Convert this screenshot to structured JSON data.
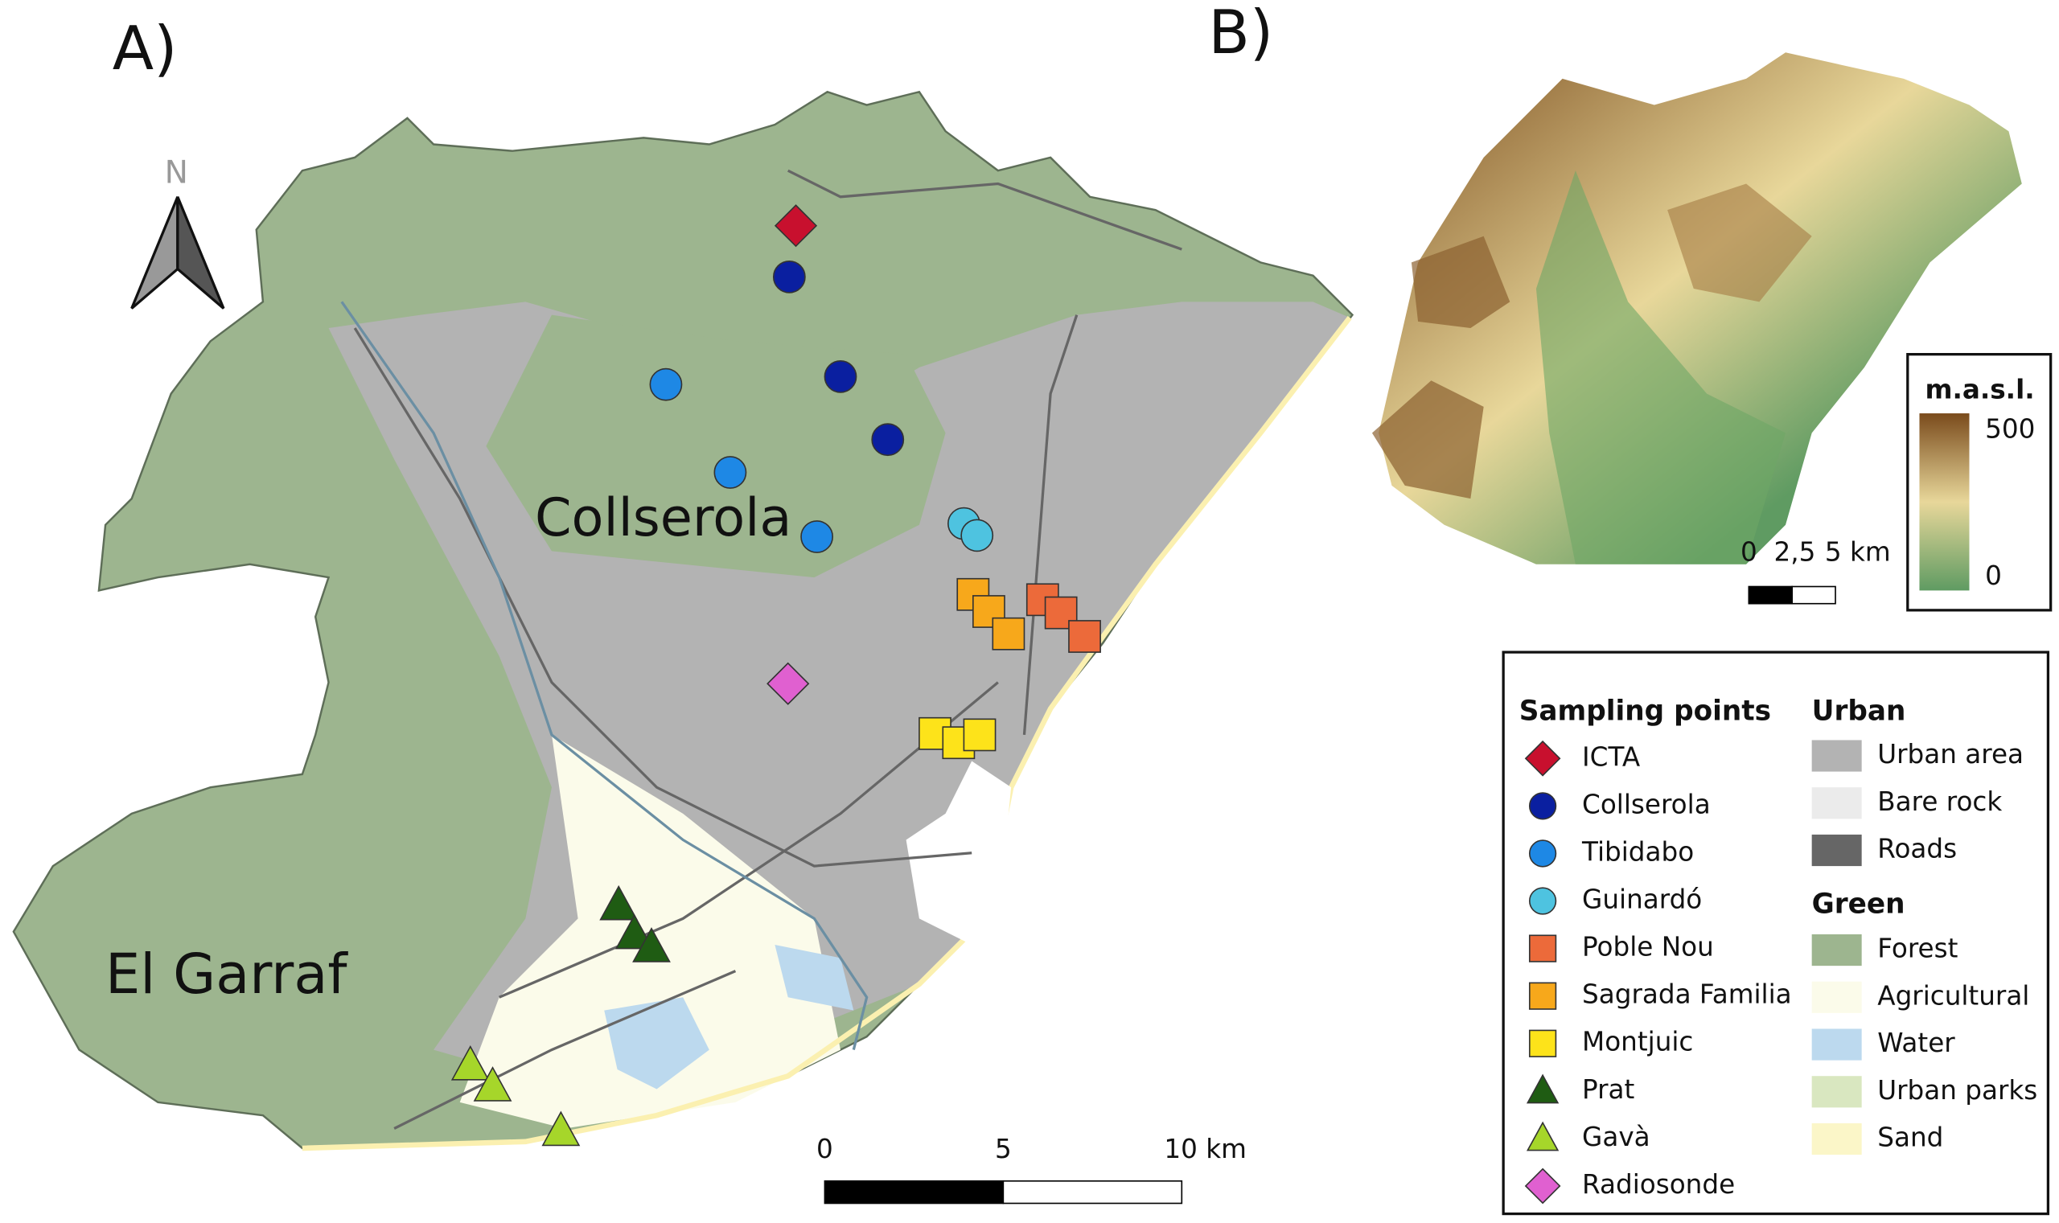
{
  "panels": {
    "a": "A)",
    "b": "B)"
  },
  "north": "N",
  "places": {
    "collserola": "Collserola",
    "garraf": "El Garraf"
  },
  "scale_bar": {
    "labels": [
      "0",
      "5",
      "10 km"
    ]
  },
  "inset": {
    "scale_labels": [
      "0",
      "2,5",
      "5 km"
    ],
    "elevation": {
      "title": "m.a.s.l.",
      "max_label": "500",
      "min_label": "0",
      "high_color": "#7a4b1c",
      "mid_color": "#e8d79a",
      "low_color": "#5f9b62"
    }
  },
  "legend": {
    "sampling_points": {
      "title": "Sampling points",
      "items": [
        {
          "name": "ICTA",
          "color": "#c8102e",
          "shape": "diamond"
        },
        {
          "name": "Collserola",
          "color": "#0a1fa0",
          "shape": "circle"
        },
        {
          "name": "Tibidabo",
          "color": "#1e88e5",
          "shape": "circle"
        },
        {
          "name": "Guinardó",
          "color": "#4ec3e0",
          "shape": "circle"
        },
        {
          "name": "Poble Nou",
          "color": "#ec6a3a",
          "shape": "square"
        },
        {
          "name": "Sagrada Familia",
          "color": "#f7a81b",
          "shape": "square"
        },
        {
          "name": "Montjuic",
          "color": "#fde31a",
          "shape": "square"
        },
        {
          "name": "Prat",
          "color": "#1f5c13",
          "shape": "triangle"
        },
        {
          "name": "Gavà",
          "color": "#a6d62a",
          "shape": "triangle"
        },
        {
          "name": "Radiosonde",
          "color": "#e060d0",
          "shape": "diamond"
        }
      ]
    },
    "urban": {
      "title": "Urban",
      "items": [
        {
          "name": "Urban area",
          "color": "#b3b3b3"
        },
        {
          "name": "Bare rock",
          "color": "#ebebeb"
        },
        {
          "name": "Roads",
          "color": "#666666"
        }
      ]
    },
    "green": {
      "title": "Green",
      "items": [
        {
          "name": "Forest",
          "color": "#9db58f"
        },
        {
          "name": "Agricultural",
          "color": "#fbfbea"
        },
        {
          "name": "Water",
          "color": "#bcd9ee"
        },
        {
          "name": "Urban parks",
          "color": "#d9e7c0"
        },
        {
          "name": "Sand",
          "color": "#fbf6c8"
        }
      ]
    }
  }
}
